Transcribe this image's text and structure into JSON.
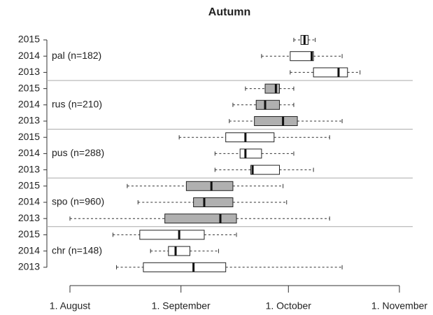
{
  "chart_data": {
    "type": "boxplot",
    "title": "Autumn",
    "xlim": [
      213,
      305
    ],
    "xticks": [
      {
        "value": 213,
        "label": "1. August"
      },
      {
        "value": 244,
        "label": "1. September"
      },
      {
        "value": 274,
        "label": "1. October"
      },
      {
        "value": 305,
        "label": "1. November"
      }
    ],
    "groups": [
      {
        "label": "pal (n=182)",
        "color": "#ffffff",
        "boxes": [
          {
            "year": "2015",
            "min": 275.5,
            "q1": 277.5,
            "median": 278.5,
            "q3": 279.5,
            "max": 281.5
          },
          {
            "year": "2014",
            "min": 266.5,
            "q1": 274.5,
            "median": 280.5,
            "q3": 281,
            "max": 289
          },
          {
            "year": "2013",
            "min": 274.5,
            "q1": 281,
            "median": 288,
            "q3": 290.5,
            "max": 294
          }
        ]
      },
      {
        "label": "rus (n=210)",
        "color": "#b0b0b0",
        "boxes": [
          {
            "year": "2015",
            "min": 262,
            "q1": 267.5,
            "median": 270.5,
            "q3": 271.5,
            "max": 275.5
          },
          {
            "year": "2014",
            "min": 258.5,
            "q1": 265,
            "median": 267.5,
            "q3": 271.5,
            "max": 275.5
          },
          {
            "year": "2013",
            "min": 257.5,
            "q1": 264.5,
            "median": 272.5,
            "q3": 276.5,
            "max": 289
          }
        ]
      },
      {
        "label": "pus (n=288)",
        "color": "#ffffff",
        "boxes": [
          {
            "year": "2015",
            "min": 243.5,
            "q1": 256.5,
            "median": 262,
            "q3": 270,
            "max": 285.5
          },
          {
            "year": "2014",
            "min": 253.5,
            "q1": 260.5,
            "median": 262,
            "q3": 266.5,
            "max": 275.5
          },
          {
            "year": "2013",
            "min": 253.5,
            "q1": 263.5,
            "median": 264,
            "q3": 271.5,
            "max": 281
          }
        ]
      },
      {
        "label": "spo (n=960)",
        "color": "#b0b0b0",
        "boxes": [
          {
            "year": "2015",
            "min": 229,
            "q1": 245.5,
            "median": 252.5,
            "q3": 258.5,
            "max": 272.5
          },
          {
            "year": "2014",
            "min": 232,
            "q1": 247.5,
            "median": 250.5,
            "q3": 258.5,
            "max": 273.5
          },
          {
            "year": "2013",
            "min": 213,
            "q1": 239.5,
            "median": 255,
            "q3": 259.5,
            "max": 285.5
          }
        ]
      },
      {
        "label": "chr (n=148)",
        "color": "#ffffff",
        "boxes": [
          {
            "year": "2015",
            "min": 225,
            "q1": 232.5,
            "median": 243.5,
            "q3": 250.5,
            "max": 259.5
          },
          {
            "year": "2014",
            "min": 235.5,
            "q1": 240.5,
            "median": 242.5,
            "q3": 246.5,
            "max": 254.5
          },
          {
            "year": "2013",
            "min": 226,
            "q1": 233.5,
            "median": 247.5,
            "q3": 256.5,
            "max": 289
          }
        ]
      }
    ]
  }
}
